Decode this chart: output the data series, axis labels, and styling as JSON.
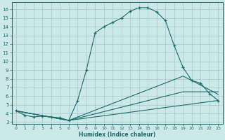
{
  "xlabel": "Humidex (Indice chaleur)",
  "bg_color": "#cce8e8",
  "grid_color": "#aacfcf",
  "line_color": "#1a6b6b",
  "xlim": [
    -0.5,
    23.5
  ],
  "ylim": [
    2.8,
    16.8
  ],
  "xticks": [
    0,
    1,
    2,
    3,
    4,
    5,
    6,
    7,
    8,
    9,
    10,
    11,
    12,
    13,
    14,
    15,
    16,
    17,
    18,
    19,
    20,
    21,
    22,
    23
  ],
  "yticks": [
    3,
    4,
    5,
    6,
    7,
    8,
    9,
    10,
    11,
    12,
    13,
    14,
    15,
    16
  ],
  "line1_x": [
    0,
    1,
    2,
    3,
    4,
    5,
    6,
    7,
    8,
    9,
    10,
    11,
    12,
    13,
    14,
    15,
    16,
    17,
    18,
    19,
    20,
    21,
    22,
    23
  ],
  "line1_y": [
    4.3,
    3.8,
    3.6,
    3.7,
    3.6,
    3.5,
    3.2,
    5.5,
    9.0,
    13.3,
    14.0,
    14.5,
    15.0,
    15.8,
    16.2,
    16.2,
    15.7,
    14.7,
    11.8,
    9.3,
    7.8,
    7.5,
    6.3,
    5.5
  ],
  "line2_x": [
    0,
    6,
    23
  ],
  "line2_y": [
    4.3,
    3.2,
    5.5
  ],
  "line3_x": [
    0,
    6,
    19,
    23
  ],
  "line3_y": [
    4.3,
    3.2,
    6.5,
    6.5
  ],
  "line4_x": [
    0,
    6,
    19,
    20,
    23
  ],
  "line4_y": [
    4.3,
    3.2,
    8.3,
    7.8,
    6.2
  ]
}
